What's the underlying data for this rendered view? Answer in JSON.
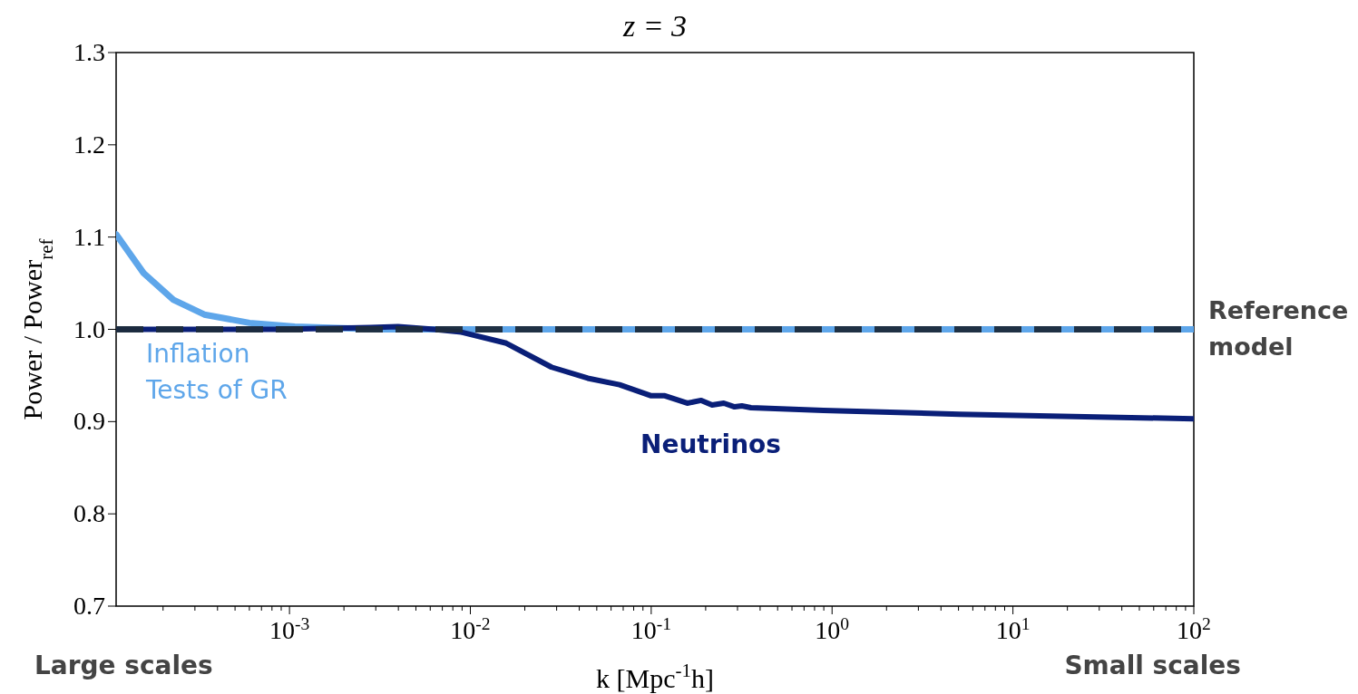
{
  "chart_data": {
    "type": "line",
    "title": "z = 3",
    "xlabel": "k [Mpc$^{-1}$h]",
    "ylabel": "Power / Power$_{ref}$",
    "log": "x",
    "xlim": [
      0.00011,
      100
    ],
    "ylim": [
      0.7,
      1.3
    ],
    "xticks": [
      {
        "value": 0.0002,
        "label": null
      },
      {
        "value": 0.0003,
        "label": null
      },
      {
        "value": 0.0004,
        "label": null
      },
      {
        "value": 0.0005,
        "label": null
      },
      {
        "value": 0.0006,
        "label": null
      },
      {
        "value": 0.0007,
        "label": null
      },
      {
        "value": 0.0008,
        "label": null
      },
      {
        "value": 0.0009,
        "label": null
      },
      {
        "value": 0.001,
        "label": "10$^{-3}$"
      },
      {
        "value": 0.002,
        "label": null
      },
      {
        "value": 0.003,
        "label": null
      },
      {
        "value": 0.004,
        "label": null
      },
      {
        "value": 0.005,
        "label": null
      },
      {
        "value": 0.006,
        "label": null
      },
      {
        "value": 0.007,
        "label": null
      },
      {
        "value": 0.008,
        "label": null
      },
      {
        "value": 0.009,
        "label": null
      },
      {
        "value": 0.01,
        "label": "10$^{-2}$"
      },
      {
        "value": 0.02,
        "label": null
      },
      {
        "value": 0.03,
        "label": null
      },
      {
        "value": 0.04,
        "label": null
      },
      {
        "value": 0.05,
        "label": null
      },
      {
        "value": 0.06,
        "label": null
      },
      {
        "value": 0.07,
        "label": null
      },
      {
        "value": 0.08,
        "label": null
      },
      {
        "value": 0.09,
        "label": null
      },
      {
        "value": 0.1,
        "label": "10$^{-1}$"
      },
      {
        "value": 0.2,
        "label": null
      },
      {
        "value": 0.3,
        "label": null
      },
      {
        "value": 0.4,
        "label": null
      },
      {
        "value": 0.5,
        "label": null
      },
      {
        "value": 0.6,
        "label": null
      },
      {
        "value": 0.7,
        "label": null
      },
      {
        "value": 0.8,
        "label": null
      },
      {
        "value": 0.9,
        "label": null
      },
      {
        "value": 1,
        "label": "10$^{0}$"
      },
      {
        "value": 2,
        "label": null
      },
      {
        "value": 3,
        "label": null
      },
      {
        "value": 4,
        "label": null
      },
      {
        "value": 5,
        "label": null
      },
      {
        "value": 6,
        "label": null
      },
      {
        "value": 7,
        "label": null
      },
      {
        "value": 8,
        "label": null
      },
      {
        "value": 9,
        "label": null
      },
      {
        "value": 10,
        "label": "10$^{1}$"
      },
      {
        "value": 20,
        "label": null
      },
      {
        "value": 30,
        "label": null
      },
      {
        "value": 40,
        "label": null
      },
      {
        "value": 50,
        "label": null
      },
      {
        "value": 60,
        "label": null
      },
      {
        "value": 70,
        "label": null
      },
      {
        "value": 80,
        "label": null
      },
      {
        "value": 90,
        "label": null
      },
      {
        "value": 100,
        "label": "10$^{2}$"
      }
    ],
    "yticks": [
      0.7,
      0.8,
      0.9,
      {
        "value": 1,
        "label": "1.0"
      },
      1.1,
      1.2,
      1.3
    ],
    "grid": false,
    "legend": false,
    "marker": "none",
    "series": [
      {
        "name": "Inflation\nTests of GR",
        "color": "#5ea6ea",
        "x": [
          0.00011,
          0.000156,
          0.000228,
          0.000338,
          0.000601,
          0.00107,
          0.00316,
          100
        ],
        "values": [
          1.103,
          1.061,
          1.032,
          1.016,
          1.007,
          1.003,
          1.0,
          1.0
        ]
      },
      {
        "name": "Neutrinos",
        "color": "#0a1f78",
        "x": [
          0.00011,
          0.00088,
          0.00279,
          0.00398,
          0.00631,
          0.00891,
          0.0158,
          0.0281,
          0.0446,
          0.0668,
          0.1,
          0.119,
          0.158,
          0.189,
          0.217,
          0.252,
          0.289,
          0.317,
          0.356,
          0.895,
          5.06,
          100
        ],
        "values": [
          1.0,
          1.0,
          1.002,
          1.003,
          1.0,
          0.997,
          0.985,
          0.959,
          0.947,
          0.94,
          0.928,
          0.928,
          0.92,
          0.923,
          0.918,
          0.92,
          0.916,
          0.917,
          0.915,
          0.912,
          0.908,
          0.903
        ]
      }
    ],
    "ref_lines": [
      {
        "axis": "y",
        "value": 1.0,
        "label": "Reference\nmodel",
        "color": "#1c2b3c",
        "line_style": "dashed"
      }
    ],
    "annotations": [
      "Large scales",
      "Small scales"
    ]
  }
}
